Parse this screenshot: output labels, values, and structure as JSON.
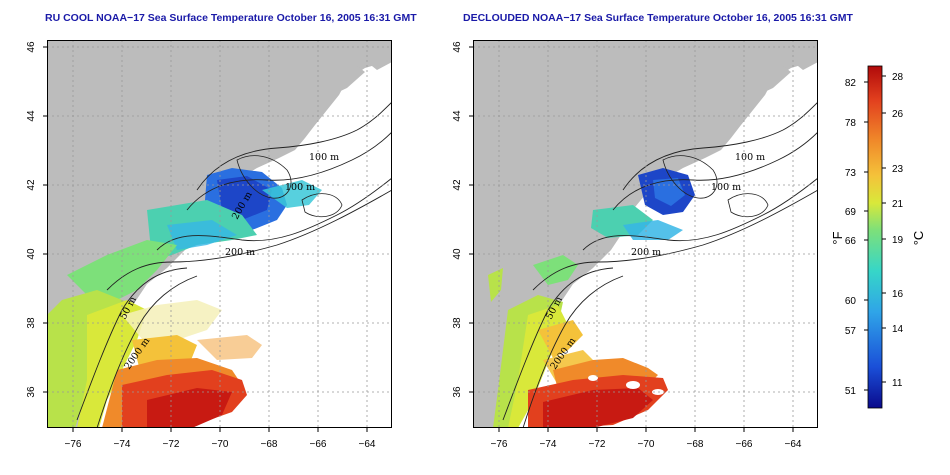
{
  "titles": {
    "left": "RU COOL NOAA−17 Sea Surface Temperature October 16, 2005 16:31 GMT",
    "right": "DECLOUDED NOAA−17 Sea Surface Temperature October 16, 2005 16:31 GMT"
  },
  "axes": {
    "x_ticks": [
      "−76",
      "−74",
      "−72",
      "−70",
      "−68",
      "−66",
      "−64"
    ],
    "y_ticks": [
      "46",
      "44",
      "42",
      "40",
      "38",
      "36"
    ],
    "grid": "dotted"
  },
  "contour_labels": {
    "left": [
      "100 m",
      "100 m",
      "200 m",
      "200 m",
      "50 m",
      "2000 m"
    ],
    "right": [
      "100 m",
      "100 m",
      "200 m",
      "50 m",
      "2000 m"
    ]
  },
  "colorbar": {
    "fahrenheit_ticks": [
      "82",
      "78",
      "73",
      "69",
      "66",
      "60",
      "57",
      "51"
    ],
    "celsius_ticks": [
      "28",
      "26",
      "23",
      "21",
      "19",
      "16",
      "14",
      "11"
    ],
    "unit_f": "°F",
    "unit_c": "°C"
  },
  "colors": {
    "land": "#bcbcbc",
    "title": "#1a1aa8",
    "scale": [
      "#0a0a8c",
      "#1a4fd8",
      "#2fa4e8",
      "#36d6c8",
      "#7de07a",
      "#d9e83a",
      "#f4c23a",
      "#f08a2a",
      "#e2401e",
      "#b00a0a"
    ]
  }
}
